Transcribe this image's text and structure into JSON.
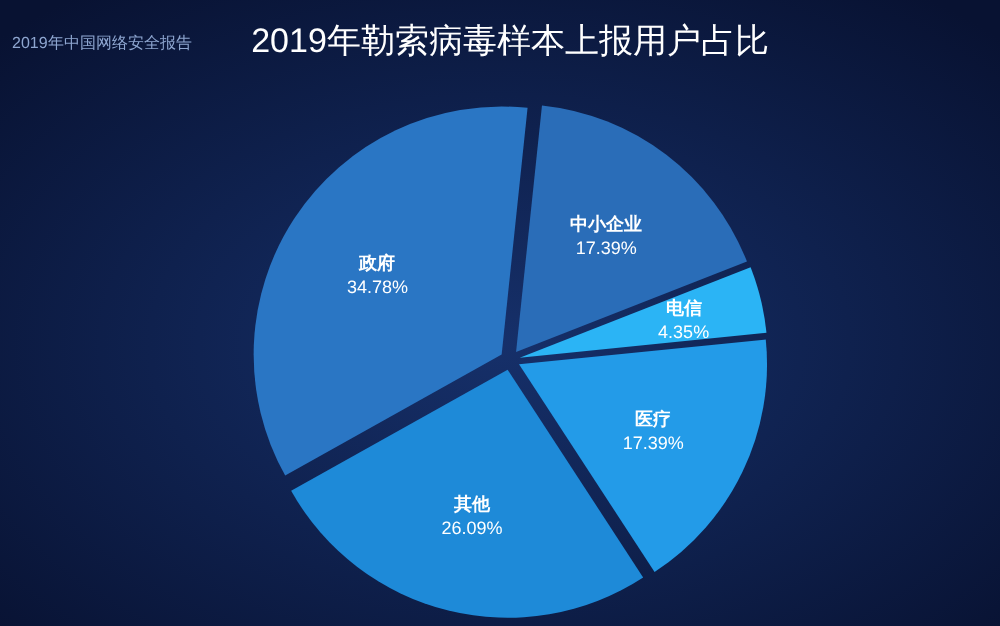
{
  "chart_data": {
    "type": "pie",
    "title": "2019年勒索病毒样本上报用户占比",
    "annotations": [
      "2019年中国网络安全报告"
    ],
    "categories": [
      "中小企业",
      "电信",
      "医疗",
      "其他",
      "政府"
    ],
    "values": [
      17.39,
      4.35,
      17.39,
      26.09,
      34.78
    ],
    "value_labels": [
      "17.39%",
      "4.35%",
      "17.39%",
      "26.09%",
      "34.78%"
    ],
    "colors": [
      "#2a6db8",
      "#2bb4f5",
      "#239be8",
      "#1e8ad8",
      "#2a76c4"
    ]
  }
}
